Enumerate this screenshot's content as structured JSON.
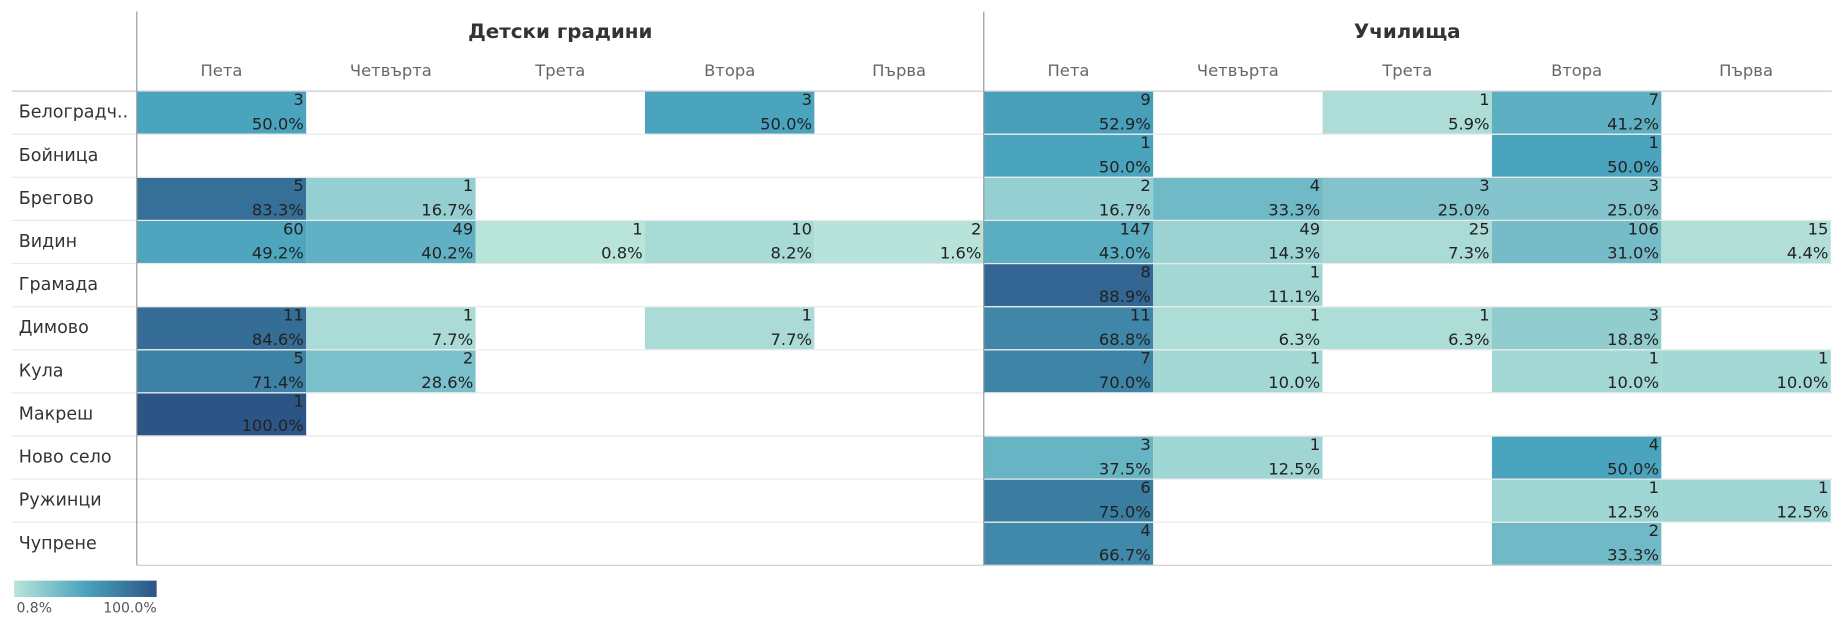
{
  "table": {
    "groups": [
      "Детски градини",
      "Училища"
    ],
    "columns": [
      "Пета",
      "Четвърта",
      "Трета",
      "Втора",
      "Първа"
    ],
    "rows": [
      {
        "label": "Белоградч..",
        "cells": [
          [
            {
              "count": 3,
              "pct": 50.0,
              "pct_label": "50.0%"
            },
            null,
            null,
            {
              "count": 3,
              "pct": 50.0,
              "pct_label": "50.0%"
            },
            null
          ],
          [
            {
              "count": 9,
              "pct": 52.9,
              "pct_label": "52.9%"
            },
            null,
            {
              "count": 1,
              "pct": 5.9,
              "pct_label": "5.9%"
            },
            {
              "count": 7,
              "pct": 41.2,
              "pct_label": "41.2%"
            },
            null
          ]
        ]
      },
      {
        "label": "Бойница",
        "cells": [
          [
            null,
            null,
            null,
            null,
            null
          ],
          [
            {
              "count": 1,
              "pct": 50.0,
              "pct_label": "50.0%"
            },
            null,
            null,
            {
              "count": 1,
              "pct": 50.0,
              "pct_label": "50.0%"
            },
            null
          ]
        ]
      },
      {
        "label": "Брегово",
        "cells": [
          [
            {
              "count": 5,
              "pct": 83.3,
              "pct_label": "83.3%"
            },
            {
              "count": 1,
              "pct": 16.7,
              "pct_label": "16.7%"
            },
            null,
            null,
            null
          ],
          [
            {
              "count": 2,
              "pct": 16.7,
              "pct_label": "16.7%"
            },
            {
              "count": 4,
              "pct": 33.3,
              "pct_label": "33.3%"
            },
            {
              "count": 3,
              "pct": 25.0,
              "pct_label": "25.0%"
            },
            {
              "count": 3,
              "pct": 25.0,
              "pct_label": "25.0%"
            },
            null
          ]
        ]
      },
      {
        "label": "Видин",
        "cells": [
          [
            {
              "count": 60,
              "pct": 49.2,
              "pct_label": "49.2%"
            },
            {
              "count": 49,
              "pct": 40.2,
              "pct_label": "40.2%"
            },
            {
              "count": 1,
              "pct": 0.8,
              "pct_label": "0.8%"
            },
            {
              "count": 10,
              "pct": 8.2,
              "pct_label": "8.2%"
            },
            {
              "count": 2,
              "pct": 1.6,
              "pct_label": "1.6%"
            }
          ],
          [
            {
              "count": 147,
              "pct": 43.0,
              "pct_label": "43.0%"
            },
            {
              "count": 49,
              "pct": 14.3,
              "pct_label": "14.3%"
            },
            {
              "count": 25,
              "pct": 7.3,
              "pct_label": "7.3%"
            },
            {
              "count": 106,
              "pct": 31.0,
              "pct_label": "31.0%"
            },
            {
              "count": 15,
              "pct": 4.4,
              "pct_label": "4.4%"
            }
          ]
        ]
      },
      {
        "label": "Грамада",
        "cells": [
          [
            null,
            null,
            null,
            null,
            null
          ],
          [
            {
              "count": 8,
              "pct": 88.9,
              "pct_label": "88.9%"
            },
            {
              "count": 1,
              "pct": 11.1,
              "pct_label": "11.1%"
            },
            null,
            null,
            null
          ]
        ]
      },
      {
        "label": "Димово",
        "cells": [
          [
            {
              "count": 11,
              "pct": 84.6,
              "pct_label": "84.6%"
            },
            {
              "count": 1,
              "pct": 7.7,
              "pct_label": "7.7%"
            },
            null,
            {
              "count": 1,
              "pct": 7.7,
              "pct_label": "7.7%"
            },
            null
          ],
          [
            {
              "count": 11,
              "pct": 68.8,
              "pct_label": "68.8%"
            },
            {
              "count": 1,
              "pct": 6.3,
              "pct_label": "6.3%"
            },
            {
              "count": 1,
              "pct": 6.3,
              "pct_label": "6.3%"
            },
            {
              "count": 3,
              "pct": 18.8,
              "pct_label": "18.8%"
            },
            null
          ]
        ]
      },
      {
        "label": "Кула",
        "cells": [
          [
            {
              "count": 5,
              "pct": 71.4,
              "pct_label": "71.4%"
            },
            {
              "count": 2,
              "pct": 28.6,
              "pct_label": "28.6%"
            },
            null,
            null,
            null
          ],
          [
            {
              "count": 7,
              "pct": 70.0,
              "pct_label": "70.0%"
            },
            {
              "count": 1,
              "pct": 10.0,
              "pct_label": "10.0%"
            },
            null,
            {
              "count": 1,
              "pct": 10.0,
              "pct_label": "10.0%"
            },
            {
              "count": 1,
              "pct": 10.0,
              "pct_label": "10.0%"
            }
          ]
        ]
      },
      {
        "label": "Макреш",
        "cells": [
          [
            {
              "count": 1,
              "pct": 100.0,
              "pct_label": "100.0%"
            },
            null,
            null,
            null,
            null
          ],
          [
            null,
            null,
            null,
            null,
            null
          ]
        ]
      },
      {
        "label": "Ново село",
        "cells": [
          [
            null,
            null,
            null,
            null,
            null
          ],
          [
            {
              "count": 3,
              "pct": 37.5,
              "pct_label": "37.5%"
            },
            {
              "count": 1,
              "pct": 12.5,
              "pct_label": "12.5%"
            },
            null,
            {
              "count": 4,
              "pct": 50.0,
              "pct_label": "50.0%"
            },
            null
          ]
        ]
      },
      {
        "label": "Ружинци",
        "cells": [
          [
            null,
            null,
            null,
            null,
            null
          ],
          [
            {
              "count": 6,
              "pct": 75.0,
              "pct_label": "75.0%"
            },
            null,
            null,
            {
              "count": 1,
              "pct": 12.5,
              "pct_label": "12.5%"
            },
            {
              "count": 1,
              "pct": 12.5,
              "pct_label": "12.5%"
            }
          ]
        ]
      },
      {
        "label": "Чупрене",
        "cells": [
          [
            null,
            null,
            null,
            null,
            null
          ],
          [
            {
              "count": 4,
              "pct": 66.7,
              "pct_label": "66.7%"
            },
            null,
            null,
            {
              "count": 2,
              "pct": 33.3,
              "pct_label": "33.3%"
            },
            null
          ]
        ]
      }
    ],
    "legend": {
      "min": 0.8,
      "max": 100.0,
      "min_label": "0.8%",
      "max_label": "100.0%"
    }
  }
}
